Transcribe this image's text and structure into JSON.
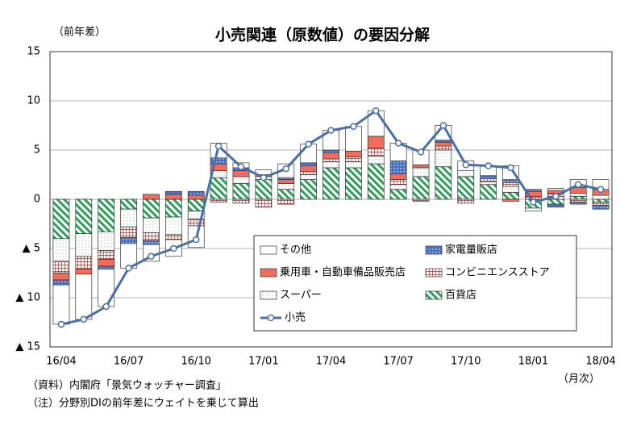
{
  "chart_data": {
    "type": "bar",
    "title": "小売関連（原数値）の要因分解",
    "y_unit": "（前年差）",
    "x_unit": "（月次）",
    "notes": [
      "（資料）内閣府「景気ウォッチャー調査」",
      "（注）分野別DIの前年差にウェイトを乗じて算出"
    ],
    "categories": [
      "16/04",
      null,
      null,
      "16/07",
      null,
      null,
      "16/10",
      null,
      null,
      "17/01",
      null,
      null,
      "17/04",
      null,
      null,
      "17/07",
      null,
      null,
      "17/10",
      null,
      null,
      "18/01",
      null,
      null,
      "18/04"
    ],
    "ylim": [
      -15,
      15
    ],
    "yticks": [
      {
        "value": -15,
        "label": "▲ 15"
      },
      {
        "value": -10,
        "label": "▲ 10"
      },
      {
        "value": -5,
        "label": "▲ 5"
      },
      0,
      5,
      10,
      15
    ],
    "grid": true,
    "series": [
      {
        "name": "その他",
        "color": "#ffffff",
        "values": [
          -4.0,
          -4.6,
          -3.8,
          -2.5,
          -1.7,
          -1.7,
          -2.2,
          1.5,
          0.5,
          0.5,
          1.4,
          1.9,
          2.0,
          2.5,
          2.6,
          1.8,
          1.5,
          1.5,
          1.0,
          1.0,
          1.4,
          -0.3,
          0.2,
          0.8,
          1.0
        ]
      },
      {
        "name": "家電量販店",
        "color": "#4a72c4",
        "values": [
          -0.5,
          0,
          -0.3,
          -0.6,
          -0.4,
          0.3,
          0.4,
          0.6,
          0.3,
          0,
          0.2,
          0.3,
          0.3,
          0,
          0,
          1.3,
          0,
          0.2,
          0,
          0.3,
          0.3,
          0.2,
          -0.3,
          -0.2,
          -0.4
        ]
      },
      {
        "name": "乗用車・自動車備品販売店",
        "color": "#f26b5b",
        "values": [
          -0.7,
          -0.5,
          -0.7,
          0,
          0.5,
          0.5,
          0.4,
          0.7,
          0.6,
          0.2,
          0.4,
          0.6,
          0.6,
          0.6,
          1.2,
          0.6,
          0.3,
          0.4,
          0,
          0,
          -0.2,
          0.5,
          0.3,
          0.6,
          0.6
        ]
      },
      {
        "name": "コンビニエンスストア",
        "color": "#8b3a3a",
        "values": [
          -1.2,
          -1.3,
          -0.9,
          -1.1,
          -0.8,
          -0.5,
          -0.7,
          -0.3,
          -0.4,
          -0.8,
          -0.5,
          0.3,
          0.3,
          0.5,
          0.8,
          0.5,
          -0.2,
          0.4,
          -0.4,
          0.3,
          0.4,
          0.3,
          0.3,
          -0.3,
          -0.3
        ]
      },
      {
        "name": "スーパー",
        "color": "#7fb0a0",
        "values": [
          -2.3,
          -2.3,
          -1.9,
          -1.8,
          -1.5,
          -1.8,
          -0.8,
          0.7,
          0.7,
          0.3,
          0.6,
          0.5,
          0.6,
          0.6,
          0.8,
          0.5,
          0.9,
          1.7,
          0.6,
          0.3,
          0.6,
          0,
          0.3,
          0.3,
          0.4
        ]
      },
      {
        "name": "百貨店",
        "color": "#2e9e5a",
        "values": [
          -4.0,
          -3.5,
          -3.3,
          -1.0,
          -1.9,
          -1.8,
          -1.2,
          2.2,
          1.6,
          2.0,
          1.0,
          2.0,
          3.2,
          3.2,
          3.6,
          1.0,
          2.3,
          3.3,
          2.3,
          1.5,
          0.7,
          -0.9,
          -0.5,
          0.3,
          -0.3
        ]
      },
      {
        "name": "小売",
        "type": "line",
        "color": "#4a6fa5",
        "values": [
          -12.7,
          -12.2,
          -10.9,
          -7.0,
          -5.8,
          -5.0,
          -4.1,
          5.4,
          3.3,
          2.2,
          3.1,
          5.6,
          7.0,
          7.4,
          9.0,
          5.7,
          4.8,
          7.5,
          3.5,
          3.4,
          3.2,
          -0.3,
          0.3,
          1.5,
          1.0
        ]
      }
    ]
  }
}
